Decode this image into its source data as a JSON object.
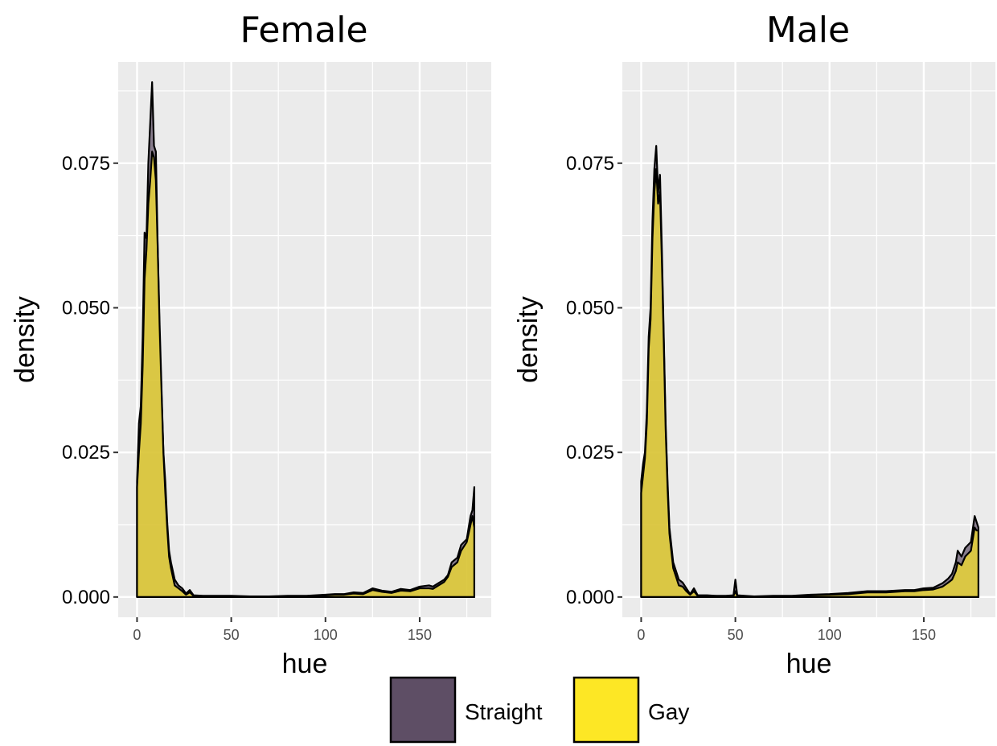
{
  "chart_data": {
    "type": "area",
    "subtype": "faceted density plot",
    "colors": {
      "Straight": "#5e4e65",
      "Gay": "#fde725",
      "panel_bg": "#ebebeb",
      "grid": "#ffffff",
      "outline": "#000000"
    },
    "xlabel": "hue",
    "ylabel": "density",
    "xlim": [
      -10,
      188
    ],
    "ylim": [
      -0.0035,
      0.0925
    ],
    "x_ticks": [
      0,
      50,
      100,
      150
    ],
    "x_tick_labels": [
      "0",
      "50",
      "100",
      "150"
    ],
    "y_ticks": [
      0,
      0.025,
      0.05,
      0.075
    ],
    "y_tick_labels": [
      "0.000",
      "0.025",
      "0.050",
      "0.075"
    ],
    "grid": true,
    "legend": {
      "position": "bottom",
      "entries": [
        "Straight",
        "Gay"
      ]
    },
    "facets": [
      {
        "title": "Female",
        "series": [
          {
            "name": "Straight",
            "x": [
              0,
              1,
              2,
              3,
              4,
              5,
              6,
              7,
              8,
              9,
              10,
              11,
              12,
              13,
              14,
              15,
              16,
              17,
              18,
              20,
              22,
              24,
              26,
              28,
              30,
              35,
              40,
              50,
              60,
              70,
              80,
              90,
              100,
              105,
              110,
              115,
              120,
              125,
              130,
              135,
              140,
              145,
              150,
              155,
              157,
              160,
              163,
              165,
              167,
              170,
              172,
              175,
              177,
              178,
              179
            ],
            "y": [
              0.02,
              0.03,
              0.033,
              0.045,
              0.063,
              0.062,
              0.075,
              0.082,
              0.089,
              0.078,
              0.077,
              0.06,
              0.045,
              0.035,
              0.025,
              0.02,
              0.013,
              0.008,
              0.006,
              0.003,
              0.002,
              0.0015,
              0.0006,
              0.0012,
              0.0003,
              0.0002,
              0.0002,
              0.0002,
              0.0001,
              0.0001,
              0.0002,
              0.0002,
              0.0004,
              0.0005,
              0.0005,
              0.0008,
              0.0007,
              0.0015,
              0.0011,
              0.0009,
              0.0014,
              0.0012,
              0.0018,
              0.002,
              0.0018,
              0.0024,
              0.003,
              0.0038,
              0.006,
              0.0068,
              0.009,
              0.01,
              0.014,
              0.015,
              0.019
            ]
          },
          {
            "name": "Gay",
            "x": [
              0,
              1,
              2,
              3,
              4,
              5,
              6,
              7,
              8,
              9,
              10,
              11,
              12,
              13,
              14,
              15,
              16,
              17,
              18,
              20,
              22,
              24,
              26,
              28,
              30,
              35,
              40,
              50,
              60,
              70,
              80,
              90,
              100,
              105,
              110,
              115,
              120,
              125,
              130,
              135,
              140,
              145,
              150,
              155,
              157,
              160,
              163,
              165,
              167,
              170,
              172,
              175,
              177,
              178,
              179
            ],
            "y": [
              0.019,
              0.025,
              0.03,
              0.04,
              0.055,
              0.06,
              0.068,
              0.072,
              0.077,
              0.076,
              0.072,
              0.06,
              0.047,
              0.036,
              0.025,
              0.018,
              0.012,
              0.007,
              0.005,
              0.002,
              0.0015,
              0.001,
              0.0004,
              0.0008,
              0.0002,
              0.0001,
              0.0001,
              0.0001,
              0.0001,
              0.0001,
              0.0001,
              0.0001,
              0.0003,
              0.0004,
              0.0004,
              0.0006,
              0.0005,
              0.0012,
              0.0009,
              0.0007,
              0.0011,
              0.001,
              0.0015,
              0.0015,
              0.0014,
              0.002,
              0.0026,
              0.0035,
              0.0052,
              0.006,
              0.008,
              0.0095,
              0.0125,
              0.014,
              0.012
            ]
          }
        ]
      },
      {
        "title": "Male",
        "series": [
          {
            "name": "Straight",
            "x": [
              0,
              1,
              2,
              3,
              4,
              5,
              6,
              7,
              8,
              9,
              10,
              11,
              12,
              13,
              14,
              15,
              16,
              17,
              18,
              20,
              22,
              24,
              26,
              28,
              30,
              35,
              40,
              45,
              49,
              50,
              51,
              55,
              60,
              70,
              80,
              90,
              100,
              110,
              120,
              130,
              140,
              145,
              150,
              155,
              160,
              163,
              165,
              167,
              168,
              170,
              172,
              175,
              177,
              178,
              179
            ],
            "y": [
              0.02,
              0.023,
              0.025,
              0.032,
              0.045,
              0.05,
              0.065,
              0.074,
              0.078,
              0.07,
              0.073,
              0.06,
              0.045,
              0.03,
              0.02,
              0.012,
              0.009,
              0.006,
              0.005,
              0.003,
              0.0025,
              0.0015,
              0.0005,
              0.0015,
              0.0003,
              0.0003,
              0.0002,
              0.0002,
              0.0003,
              0.003,
              0.0003,
              0.0002,
              0.0001,
              0.0002,
              0.0002,
              0.0004,
              0.0005,
              0.0007,
              0.001,
              0.001,
              0.0012,
              0.0012,
              0.0015,
              0.0016,
              0.0024,
              0.0032,
              0.004,
              0.006,
              0.008,
              0.007,
              0.0085,
              0.0095,
              0.014,
              0.013,
              0.012
            ]
          },
          {
            "name": "Gay",
            "x": [
              0,
              1,
              2,
              3,
              4,
              5,
              6,
              7,
              8,
              9,
              10,
              11,
              12,
              13,
              14,
              15,
              16,
              17,
              18,
              20,
              22,
              24,
              26,
              28,
              30,
              35,
              40,
              45,
              49,
              50,
              51,
              55,
              60,
              70,
              80,
              90,
              100,
              110,
              120,
              130,
              140,
              145,
              150,
              155,
              160,
              163,
              165,
              167,
              168,
              170,
              172,
              175,
              177,
              178,
              179
            ],
            "y": [
              0.018,
              0.021,
              0.024,
              0.03,
              0.043,
              0.048,
              0.062,
              0.07,
              0.074,
              0.068,
              0.07,
              0.058,
              0.044,
              0.029,
              0.019,
              0.011,
              0.008,
              0.005,
              0.004,
              0.002,
              0.0018,
              0.001,
              0.0004,
              0.001,
              0.0002,
              0.0002,
              0.0001,
              0.0001,
              0.0002,
              0.001,
              0.0002,
              0.0001,
              0.0001,
              0.0001,
              0.0001,
              0.0003,
              0.0004,
              0.0005,
              0.0008,
              0.0008,
              0.001,
              0.001,
              0.0012,
              0.0013,
              0.0018,
              0.0025,
              0.003,
              0.0045,
              0.006,
              0.0055,
              0.007,
              0.008,
              0.012,
              0.0115,
              0.0115
            ]
          }
        ]
      }
    ]
  }
}
